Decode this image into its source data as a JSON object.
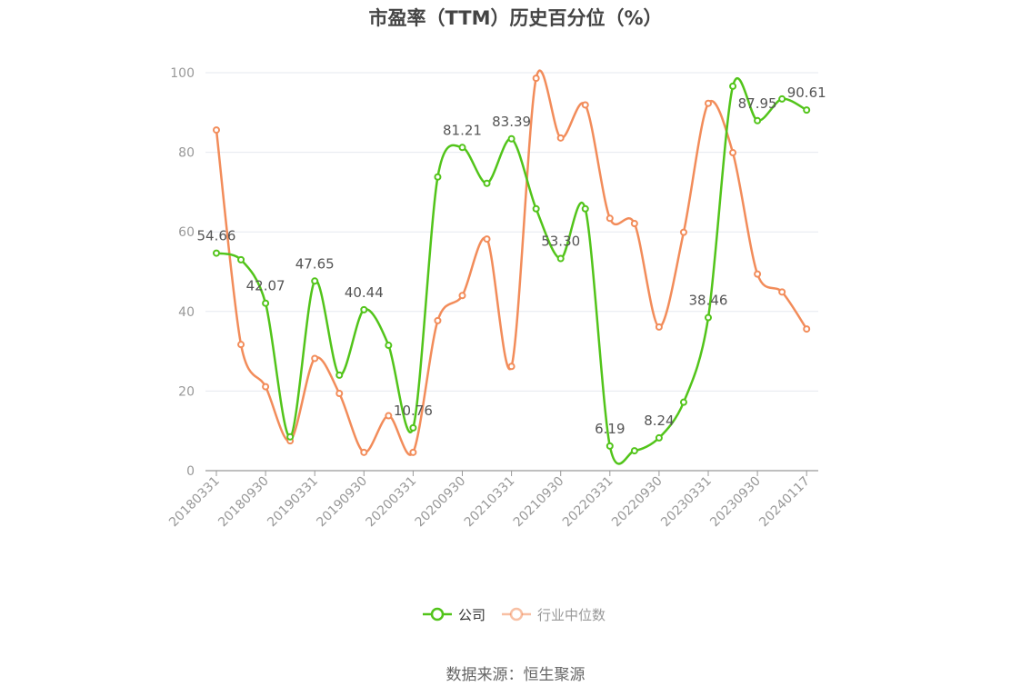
{
  "title": "市盈率（TTM）历史百分位（%）",
  "source": "数据来源：恒生聚源",
  "chart_data": {
    "type": "line",
    "title": "市盈率（TTM）历史百分位（%）",
    "ylim": [
      0,
      100
    ],
    "yticks": [
      0,
      20,
      40,
      60,
      80,
      100
    ],
    "grid": true,
    "legend_position": "bottom",
    "x_tick_labels": [
      "20180331",
      "20180930",
      "20190331",
      "20190930",
      "20200331",
      "20200930",
      "20210331",
      "20210930",
      "20220331",
      "20220930",
      "20230331",
      "20230930",
      "20240117"
    ],
    "x": [
      "20180331",
      "20180630",
      "20180930",
      "20181231",
      "20190331",
      "20190630",
      "20190930",
      "20191231",
      "20200331",
      "20200630",
      "20200930",
      "20201231",
      "20210331",
      "20210630",
      "20210930",
      "20211231",
      "20220331",
      "20220630",
      "20220930",
      "20221231",
      "20230331",
      "20230630",
      "20230930",
      "20231231",
      "20240117"
    ],
    "series": [
      {
        "name": "公司",
        "color": "#52c41a",
        "values": [
          54.66,
          53.0,
          42.07,
          8.5,
          47.65,
          24.0,
          40.44,
          31.5,
          10.76,
          73.8,
          81.21,
          72.2,
          83.39,
          65.8,
          53.3,
          65.8,
          6.19,
          5.0,
          8.24,
          17.2,
          38.46,
          96.6,
          87.95,
          93.4,
          90.61
        ],
        "labels": [
          "54.66",
          "",
          "42.07",
          "",
          "47.65",
          "",
          "40.44",
          "",
          "10.76",
          "",
          "81.21",
          "",
          "83.39",
          "",
          "53.30",
          "",
          "6.19",
          "",
          "8.24",
          "",
          "38.46",
          "",
          "87.95",
          "",
          "90.61"
        ]
      },
      {
        "name": "行业中位数",
        "color": "#f28c5a",
        "values": [
          85.6,
          31.7,
          21.1,
          7.5,
          28.2,
          19.4,
          4.6,
          13.8,
          4.6,
          37.7,
          44.0,
          58.2,
          26.2,
          98.6,
          83.6,
          91.9,
          63.4,
          62.1,
          36.1,
          59.9,
          92.3,
          79.9,
          49.4,
          44.9,
          35.6
        ]
      }
    ]
  }
}
